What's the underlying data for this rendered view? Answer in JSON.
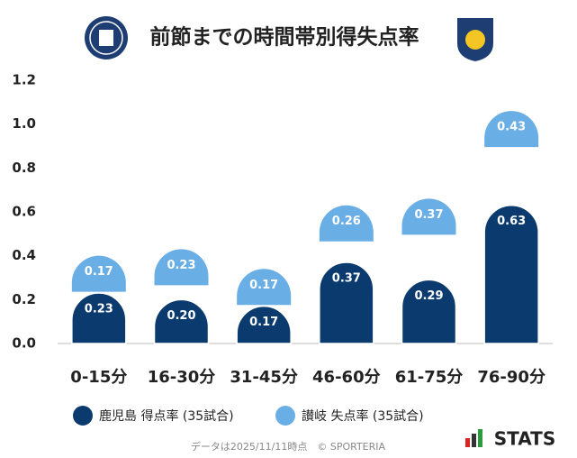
{
  "chart_data": {
    "type": "bar",
    "stacked": true,
    "title": "前節までの時間帯別得失点率",
    "categories": [
      "0-15分",
      "16-30分",
      "31-45分",
      "46-60分",
      "61-75分",
      "76-90分"
    ],
    "series": [
      {
        "name": "鹿児島 得点率 (35試合)",
        "color": "#0b3a6e",
        "values": [
          0.23,
          0.2,
          0.17,
          0.37,
          0.29,
          0.63
        ],
        "value_labels": [
          "0.23",
          "0.20",
          "0.17",
          "0.37",
          "0.29",
          "0.63"
        ]
      },
      {
        "name": "讃岐 失点率 (35試合)",
        "color": "#6aaee6",
        "values": [
          0.17,
          0.23,
          0.17,
          0.26,
          0.37,
          0.43
        ],
        "value_labels": [
          "0.17",
          "0.23",
          "0.17",
          "0.26",
          "0.37",
          "0.43"
        ]
      }
    ],
    "ylim": [
      0,
      1.2
    ],
    "yticks": [
      {
        "value": 0,
        "label": "0.0"
      },
      0.2,
      0.4,
      0.6,
      0.8,
      {
        "value": 1,
        "label": "1.0"
      },
      1.2
    ],
    "grid": false,
    "footer": "データは2025/11/11時点　© SPORTERIA",
    "brand": "STATS"
  }
}
